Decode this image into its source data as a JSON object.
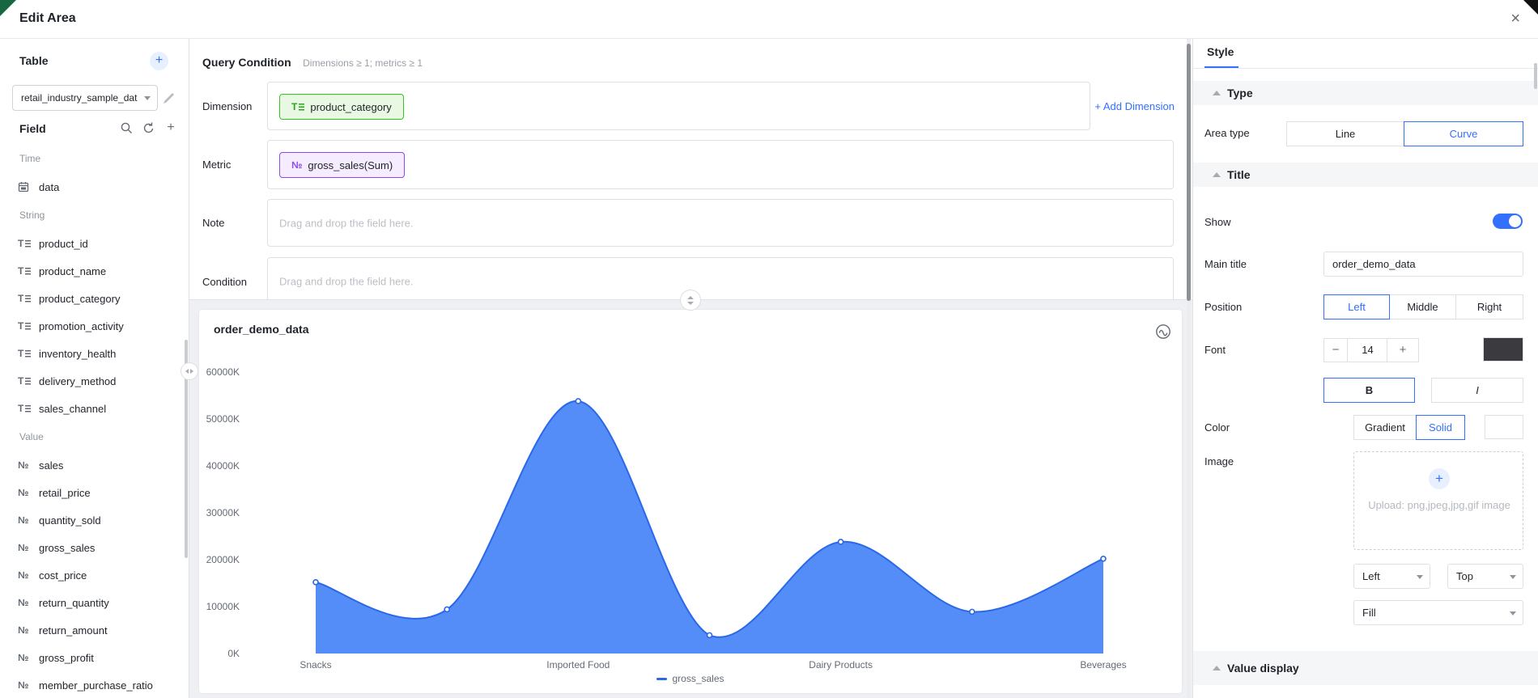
{
  "header": {
    "title": "Edit Area",
    "close": "×"
  },
  "sidebar": {
    "table_label": "Table",
    "table_add": "+",
    "table_select_value": "retail_industry_sample_dat",
    "field_label": "Field",
    "groups": [
      {
        "label": "Time",
        "type": "time",
        "items": [
          "data"
        ]
      },
      {
        "label": "String",
        "type": "string",
        "items": [
          "product_id",
          "product_name",
          "product_category",
          "promotion_activity",
          "inventory_health",
          "delivery_method",
          "sales_channel"
        ]
      },
      {
        "label": "Value",
        "type": "value",
        "items": [
          "sales",
          "retail_price",
          "quantity_sold",
          "gross_sales",
          "cost_price",
          "return_quantity",
          "return_amount",
          "gross_profit",
          "member_purchase_ratio"
        ]
      }
    ],
    "value_icon_glyph": "№",
    "string_icon_glyph": "T"
  },
  "query": {
    "title": "Query Condition",
    "subtitle": "Dimensions ≥ 1; metrics ≥ 1",
    "dimension_label": "Dimension",
    "metric_label": "Metric",
    "note_label": "Note",
    "condition_label": "Condition",
    "add_dimension": "+ Add Dimension",
    "drop_placeholder": "Drag and drop the field here.",
    "dimension_chip": {
      "glyph": "T",
      "text": "product_category"
    },
    "metric_chip": {
      "glyph": "№",
      "text": "gross_sales(Sum)"
    }
  },
  "chart": {
    "title": "order_demo_data"
  },
  "chart_data": {
    "type": "area",
    "smooth": true,
    "title": "order_demo_data",
    "categories": [
      "Snacks",
      "",
      "Imported Food",
      "",
      "Dairy Products",
      "",
      "Beverages"
    ],
    "x_visible_labels": [
      "Snacks",
      "Imported Food",
      "Dairy Products",
      "Beverages"
    ],
    "x_visible_indexes": [
      0,
      2,
      4,
      6
    ],
    "series": [
      {
        "name": "gross_sales",
        "values_K": [
          15200,
          9400,
          53800,
          3900,
          23800,
          8900,
          20200
        ]
      }
    ],
    "y_ticks": [
      "0K",
      "10000K",
      "20000K",
      "30000K",
      "40000K",
      "50000K",
      "60000K"
    ],
    "ylim_K": [
      0,
      60000
    ],
    "grid": false,
    "legend": [
      "gross_sales"
    ],
    "legend_position": "bottom",
    "colors": {
      "fill": "#4d88f8",
      "stroke": "#2a68e8",
      "marker_fill": "#ffffff"
    }
  },
  "style_panel": {
    "tab": "Style",
    "type_section": {
      "header": "Type",
      "area_type_label": "Area type",
      "line": "Line",
      "curve": "Curve",
      "selected": "Curve"
    },
    "title_section": {
      "header": "Title",
      "show_label": "Show",
      "show": true,
      "main_title_label": "Main title",
      "main_title_value": "order_demo_data",
      "position_label": "Position",
      "pos_left": "Left",
      "pos_middle": "Middle",
      "pos_right": "Right",
      "position_selected": "Left",
      "font_label": "Font",
      "font_minus": "−",
      "font_size": "14",
      "font_plus": "+",
      "font_color": "#3b3b3f",
      "bold": "B",
      "italic": "I",
      "color_label": "Color",
      "gradient": "Gradient",
      "solid": "Solid",
      "color_selected": "Solid",
      "image_label": "Image",
      "upload_plus": "+",
      "upload_hint": "Upload: png,jpeg,jpg,gif image",
      "align_h": "Left",
      "align_v": "Top",
      "fit": "Fill"
    },
    "value_display_section": {
      "header": "Value display"
    },
    "accent_color": "#3370ff"
  }
}
